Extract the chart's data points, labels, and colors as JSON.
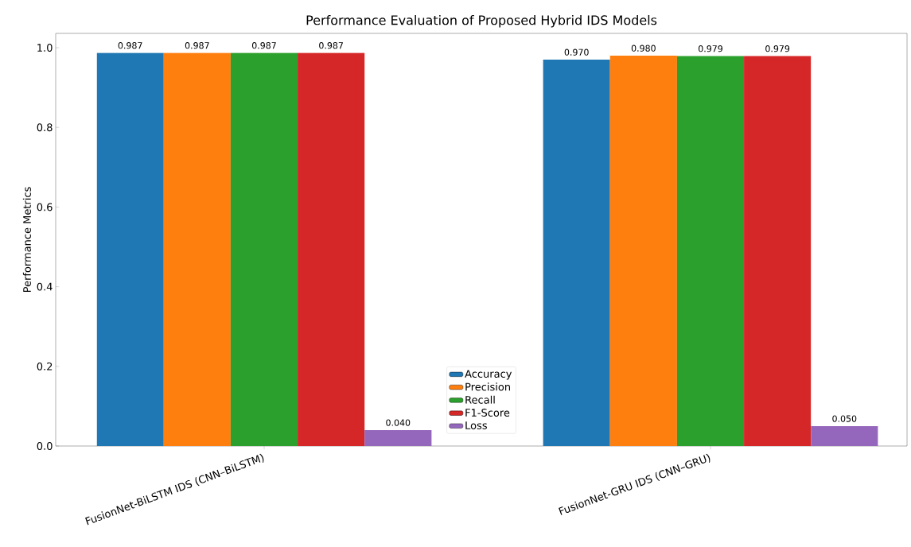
{
  "chart_data": {
    "type": "bar",
    "title": "Performance Evaluation of Proposed Hybrid IDS Models",
    "ylabel": "Performance Metrics",
    "categories": [
      "FusionNet-BiLSTM IDS (CNN–BiLSTM)",
      "FusionNet-GRU IDS (CNN–GRU)"
    ],
    "series": [
      {
        "name": "Accuracy",
        "color": "#1f77b4",
        "values": [
          0.987,
          0.97
        ],
        "value_labels": [
          "0.987",
          "0.970"
        ]
      },
      {
        "name": "Precision",
        "color": "#ff7f0e",
        "values": [
          0.987,
          0.98
        ],
        "value_labels": [
          "0.987",
          "0.980"
        ]
      },
      {
        "name": "Recall",
        "color": "#2ca02c",
        "values": [
          0.987,
          0.979
        ],
        "value_labels": [
          "0.987",
          "0.979"
        ]
      },
      {
        "name": "F1-Score",
        "color": "#d62728",
        "values": [
          0.987,
          0.979
        ],
        "value_labels": [
          "0.987",
          "0.979"
        ]
      },
      {
        "name": "Loss",
        "color": "#9467bd",
        "values": [
          0.04,
          0.05
        ],
        "value_labels": [
          "0.040",
          "0.050"
        ]
      }
    ],
    "ylim": [
      0,
      1.036
    ],
    "yticks": [
      {
        "value": 0,
        "label": "0.0"
      },
      {
        "value": 0.2,
        "label": "0.2"
      },
      {
        "value": 0.4,
        "label": "0.4"
      },
      {
        "value": 0.6,
        "label": "0.6"
      },
      {
        "value": 0.8,
        "label": "0.8"
      },
      {
        "value": 1.0,
        "label": "1.0"
      }
    ],
    "grid": false,
    "legend": "bottom"
  }
}
